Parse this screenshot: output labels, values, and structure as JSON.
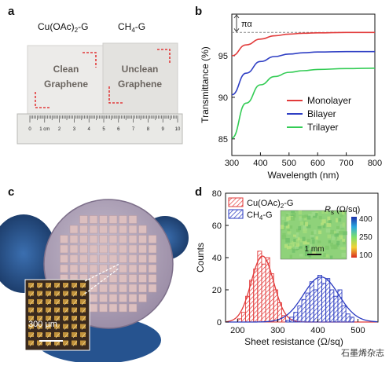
{
  "panels": {
    "a": {
      "label": "a",
      "samples": [
        {
          "caption": "Cu(OAc)",
          "caption_sub": "2",
          "caption_tail": "-G",
          "text1": "Clean",
          "text2": "Graphene"
        },
        {
          "caption": "CH",
          "caption_sub": "4",
          "caption_tail": "-G",
          "text1": "Unclean",
          "text2": "Graphene"
        }
      ],
      "ruler_numbers": [
        "0",
        "1 cm",
        "2",
        "3",
        "4",
        "5",
        "6",
        "7",
        "8",
        "9",
        "10"
      ]
    },
    "b": {
      "label": "b"
    },
    "c": {
      "label": "c",
      "scalebar": "300 μm"
    },
    "d": {
      "label": "d",
      "map_scalebar": "1 mm",
      "map_title": "R",
      "map_title_sub": "s",
      "map_title_unit": " (Ω/sq)",
      "colorbar_ticks": [
        "400",
        "250",
        "100"
      ]
    }
  },
  "watermark": "石墨烯杂志",
  "colors": {
    "monolayer": "#e23b3b",
    "bilayer": "#2f3fc4",
    "trilayer": "#33cc55",
    "hist_red": "#e23b3b",
    "hist_blue": "#2a3ac0"
  },
  "chart_data": [
    {
      "type": "line",
      "panel": "b",
      "xlabel": "Wavelength (nm)",
      "ylabel": "Transmittance (%)",
      "xlim": [
        300,
        800
      ],
      "ylim": [
        83,
        100
      ],
      "xticks": [
        300,
        400,
        500,
        600,
        700,
        800
      ],
      "yticks": [
        85,
        90,
        95
      ],
      "annotation": "πα",
      "legend_position": "bottom-right",
      "grid": false,
      "series": [
        {
          "name": "Monolayer",
          "color": "#e23b3b",
          "x": [
            300,
            350,
            400,
            450,
            500,
            550,
            600,
            700,
            800
          ],
          "y": [
            95.0,
            96.3,
            97.0,
            97.4,
            97.6,
            97.7,
            97.75,
            97.8,
            97.8
          ]
        },
        {
          "name": "Bilayer",
          "color": "#2f3fc4",
          "x": [
            300,
            350,
            400,
            450,
            500,
            550,
            600,
            700,
            800
          ],
          "y": [
            90.3,
            92.9,
            94.3,
            94.9,
            95.2,
            95.35,
            95.45,
            95.5,
            95.5
          ]
        },
        {
          "name": "Trilayer",
          "color": "#33cc55",
          "x": [
            300,
            350,
            400,
            450,
            500,
            550,
            600,
            700,
            800
          ],
          "y": [
            85.1,
            89.3,
            91.5,
            92.5,
            93.0,
            93.2,
            93.35,
            93.45,
            93.5
          ]
        }
      ],
      "reference_line": 97.8
    },
    {
      "type": "bar",
      "panel": "d",
      "xlabel": "Sheet resistance (Ω/sq)",
      "ylabel": "Counts",
      "xlim": [
        170,
        550
      ],
      "ylim": [
        0,
        80
      ],
      "xticks": [
        200,
        300,
        400,
        500
      ],
      "yticks": [
        0,
        20,
        40,
        60,
        80
      ],
      "legend_position": "top-left",
      "series": [
        {
          "name": "Cu(OAc)",
          "name_sub": "2",
          "name_tail": "-G",
          "color": "#e23b3b",
          "bins": [
            200,
            210,
            220,
            230,
            240,
            250,
            260,
            270,
            280,
            290,
            300,
            310
          ],
          "counts": [
            2,
            6,
            16,
            26,
            33,
            44,
            36,
            40,
            30,
            20,
            12,
            4
          ],
          "fit": {
            "mean": 262,
            "sd": 28,
            "peak": 41
          }
        },
        {
          "name": "CH",
          "name_sub": "4",
          "name_tail": "-G",
          "color": "#2a3ac0",
          "bins": [
            320,
            330,
            340,
            350,
            360,
            370,
            380,
            390,
            400,
            410,
            420,
            430,
            440,
            450,
            460,
            470,
            480
          ],
          "counts": [
            1,
            3,
            6,
            10,
            14,
            18,
            25,
            20,
            29,
            24,
            27,
            20,
            16,
            20,
            10,
            5,
            3
          ],
          "fit": {
            "mean": 408,
            "sd": 44,
            "peak": 28
          }
        }
      ]
    }
  ]
}
